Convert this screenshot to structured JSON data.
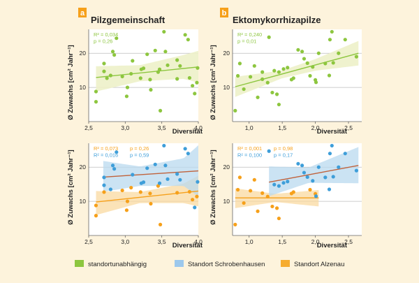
{
  "panels": [
    {
      "letter": "a",
      "title": "Pilzgemeinschaft"
    },
    {
      "letter": "b",
      "title": "Ektomykorrhizapilze"
    }
  ],
  "ylabel": "Ø Zuwachs [cm² Jahr⁻¹]",
  "xlabel": "Diversität",
  "legend": [
    {
      "label": "standortunabhängig",
      "color": "#8dc63f"
    },
    {
      "label": "Standort Schrobenhausen",
      "color": "#9cc8ec"
    },
    {
      "label": "Standort Alzenau",
      "color": "#f6ac2f"
    }
  ],
  "colors": {
    "green": "#8dc63f",
    "blue": "#3e9ed9",
    "orange": "#f6a01a",
    "trend_red": "#c0623b",
    "band_green": "#edf1c9",
    "band_blue": "#b9d9ef",
    "band_orange": "#fad9a0",
    "grid": "#bdbdbd",
    "tag_bg": "#f6a01a"
  },
  "chart_data": [
    {
      "id": "a-top",
      "type": "scatter",
      "xlim": [
        2.5,
        4.0
      ],
      "ylim": [
        0,
        27
      ],
      "xticks": [
        2.5,
        3.0,
        3.5,
        4.0
      ],
      "xtick_labels": [
        "2,5",
        "3,0",
        "3,5",
        "4,0"
      ],
      "yticks": [
        10,
        20
      ],
      "grid": "horizontal",
      "stats": [
        {
          "text": "R² = 0,034",
          "color": "green"
        },
        {
          "text": "p = 0,26",
          "color": "green"
        }
      ],
      "series": [
        {
          "color": "green",
          "points": [
            [
              2.6,
              5.8
            ],
            [
              2.6,
              8.8
            ],
            [
              2.71,
              14.7
            ],
            [
              2.71,
              17.0
            ],
            [
              2.75,
              12.7
            ],
            [
              2.8,
              13.5
            ],
            [
              2.83,
              20.5
            ],
            [
              2.85,
              19.5
            ],
            [
              2.88,
              24.4
            ],
            [
              2.96,
              13.2
            ],
            [
              3.02,
              7.4
            ],
            [
              3.03,
              10.0
            ],
            [
              3.08,
              14.0
            ],
            [
              3.1,
              17.8
            ],
            [
              3.21,
              12.7
            ],
            [
              3.22,
              15.3
            ],
            [
              3.25,
              15.6
            ],
            [
              3.3,
              19.7
            ],
            [
              3.34,
              12.3
            ],
            [
              3.35,
              9.3
            ],
            [
              3.41,
              20.8
            ],
            [
              3.45,
              14.5
            ],
            [
              3.47,
              15.3
            ],
            [
              3.48,
              3.2
            ],
            [
              3.53,
              26.3
            ],
            [
              3.55,
              20.5
            ],
            [
              3.58,
              16.5
            ],
            [
              3.71,
              18.0
            ],
            [
              3.71,
              12.5
            ],
            [
              3.75,
              16.3
            ],
            [
              3.82,
              25.4
            ],
            [
              3.86,
              24.0
            ],
            [
              3.88,
              12.8
            ],
            [
              3.92,
              10.5
            ],
            [
              3.95,
              8.2
            ],
            [
              3.98,
              11.4
            ],
            [
              3.99,
              15.7
            ]
          ],
          "trend": {
            "x": [
              2.6,
              4.0
            ],
            "y": [
              12.9,
              16.0
            ],
            "color": "green"
          },
          "band": {
            "x": [
              2.6,
              3.2,
              3.8,
              4.0
            ],
            "upper": [
              16.2,
              16.5,
              19.5,
              20.7
            ],
            "lower": [
              8.8,
              11.8,
              12.5,
              11.4
            ],
            "fill": "band_green"
          }
        }
      ]
    },
    {
      "id": "b-top",
      "type": "scatter",
      "xlim": [
        0.75,
        2.7
      ],
      "ylim": [
        0,
        27
      ],
      "xticks": [
        1.0,
        1.5,
        2.0,
        2.5
      ],
      "xtick_labels": [
        "1,0",
        "1,5",
        "2,0",
        "2,5"
      ],
      "yticks": [
        10,
        20
      ],
      "grid": "horizontal",
      "stats": [
        {
          "text": "R² = 0,240",
          "color": "green"
        },
        {
          "text": "p = 0,01",
          "color": "green"
        }
      ],
      "series": [
        {
          "color": "green",
          "points": [
            [
              0.79,
              3.2
            ],
            [
              0.83,
              13.4
            ],
            [
              0.86,
              17.0
            ],
            [
              0.92,
              9.5
            ],
            [
              1.02,
              13.1
            ],
            [
              1.08,
              16.3
            ],
            [
              1.13,
              7.1
            ],
            [
              1.2,
              12.4
            ],
            [
              1.2,
              14.5
            ],
            [
              1.28,
              11.4
            ],
            [
              1.3,
              24.7
            ],
            [
              1.35,
              8.5
            ],
            [
              1.38,
              14.9
            ],
            [
              1.42,
              8.0
            ],
            [
              1.45,
              5.0
            ],
            [
              1.45,
              14.5
            ],
            [
              1.52,
              15.4
            ],
            [
              1.58,
              15.8
            ],
            [
              1.64,
              12.3
            ],
            [
              1.67,
              12.7
            ],
            [
              1.74,
              21.0
            ],
            [
              1.8,
              20.5
            ],
            [
              1.83,
              18.4
            ],
            [
              1.88,
              17.1
            ],
            [
              1.92,
              13.4
            ],
            [
              1.96,
              16.0
            ],
            [
              2.0,
              12.2
            ],
            [
              2.01,
              11.5
            ],
            [
              2.05,
              20.0
            ],
            [
              2.15,
              17.0
            ],
            [
              2.21,
              13.5
            ],
            [
              2.22,
              24.0
            ],
            [
              2.25,
              26.3
            ],
            [
              2.27,
              17.2
            ],
            [
              2.35,
              20.0
            ],
            [
              2.45,
              24.0
            ],
            [
              2.62,
              19.0
            ]
          ],
          "trend": {
            "x": [
              0.79,
              2.65
            ],
            "y": [
              10.2,
              20.0
            ],
            "color": "green"
          },
          "band": {
            "x": [
              0.79,
              1.5,
              2.0,
              2.65
            ],
            "upper": [
              13.1,
              15.0,
              18.3,
              23.6
            ],
            "lower": [
              7.2,
              12.7,
              14.9,
              16.4
            ],
            "fill": "band_green"
          }
        }
      ]
    },
    {
      "id": "a-bottom",
      "type": "scatter",
      "xlim": [
        2.5,
        4.0
      ],
      "ylim": [
        0,
        27
      ],
      "xticks": [
        2.5,
        3.0,
        3.5,
        4.0
      ],
      "xtick_labels": [
        "2,5",
        "3,0",
        "3,5",
        "4,0"
      ],
      "yticks": [
        10,
        20
      ],
      "grid": "horizontal",
      "stats": [
        {
          "text": "R² = 0,073",
          "color": "orange"
        },
        {
          "text": "p = 0,26",
          "color": "orange"
        },
        {
          "text": "R² = 0,016",
          "color": "blue"
        },
        {
          "text": "p = 0,59",
          "color": "blue"
        }
      ],
      "series": [
        {
          "color": "orange",
          "points": [
            [
              2.6,
              5.8
            ],
            [
              2.6,
              8.8
            ],
            [
              2.71,
              12.7
            ],
            [
              2.96,
              13.2
            ],
            [
              3.02,
              7.4
            ],
            [
              3.03,
              10.0
            ],
            [
              3.08,
              14.0
            ],
            [
              3.21,
              12.7
            ],
            [
              3.34,
              12.3
            ],
            [
              3.35,
              9.3
            ],
            [
              3.45,
              14.5
            ],
            [
              3.48,
              3.2
            ],
            [
              3.71,
              12.5
            ],
            [
              3.88,
              12.8
            ],
            [
              3.92,
              10.5
            ],
            [
              3.98,
              11.4
            ]
          ],
          "trend": {
            "x": [
              2.6,
              4.0
            ],
            "y": [
              9.8,
              13.0
            ],
            "color": "orange"
          },
          "band": {
            "x": [
              2.6,
              3.2,
              3.8,
              4.0
            ],
            "upper": [
              13.0,
              12.7,
              15.2,
              17.5
            ],
            "lower": [
              6.0,
              9.5,
              9.5,
              8.5
            ],
            "fill": "band_orange"
          }
        },
        {
          "color": "blue",
          "points": [
            [
              2.71,
              14.7
            ],
            [
              2.71,
              17.0
            ],
            [
              2.8,
              13.5
            ],
            [
              2.83,
              20.5
            ],
            [
              2.85,
              19.5
            ],
            [
              2.88,
              24.4
            ],
            [
              3.1,
              17.8
            ],
            [
              3.22,
              15.3
            ],
            [
              3.25,
              15.6
            ],
            [
              3.3,
              19.7
            ],
            [
              3.41,
              20.8
            ],
            [
              3.47,
              15.3
            ],
            [
              3.53,
              26.3
            ],
            [
              3.55,
              20.5
            ],
            [
              3.58,
              16.5
            ],
            [
              3.71,
              18.0
            ],
            [
              3.75,
              16.3
            ],
            [
              3.82,
              25.4
            ],
            [
              3.86,
              24.0
            ],
            [
              3.95,
              8.2
            ],
            [
              3.99,
              15.7
            ]
          ],
          "trend": {
            "x": [
              2.7,
              4.0
            ],
            "y": [
              17.1,
              18.9
            ],
            "color": "trend_red"
          },
          "band": {
            "x": [
              2.7,
              3.2,
              3.8,
              4.0
            ],
            "upper": [
              21.8,
              20.2,
              22.6,
              26.4
            ],
            "lower": [
              12.8,
              14.5,
              14.5,
              11.4
            ],
            "fill": "band_blue"
          }
        }
      ]
    },
    {
      "id": "b-bottom",
      "type": "scatter",
      "xlim": [
        0.75,
        2.7
      ],
      "ylim": [
        0,
        27
      ],
      "xticks": [
        1.0,
        1.5,
        2.0,
        2.5
      ],
      "xtick_labels": [
        "1,0",
        "1,5",
        "2,0",
        "2,5"
      ],
      "yticks": [
        10,
        20
      ],
      "grid": "horizontal",
      "stats": [
        {
          "text": "R² = 0,001",
          "color": "orange"
        },
        {
          "text": "p = 0,98",
          "color": "orange"
        },
        {
          "text": "R² = 0,100",
          "color": "blue"
        },
        {
          "text": "p = 0,17",
          "color": "blue"
        }
      ],
      "series": [
        {
          "color": "orange",
          "points": [
            [
              0.79,
              3.2
            ],
            [
              0.83,
              13.4
            ],
            [
              0.86,
              17.0
            ],
            [
              0.92,
              9.5
            ],
            [
              1.02,
              13.1
            ],
            [
              1.08,
              16.3
            ],
            [
              1.13,
              7.1
            ],
            [
              1.2,
              12.4
            ],
            [
              1.28,
              11.4
            ],
            [
              1.35,
              8.5
            ],
            [
              1.42,
              8.0
            ],
            [
              1.45,
              5.0
            ],
            [
              1.64,
              12.3
            ],
            [
              1.67,
              12.7
            ],
            [
              1.92,
              13.4
            ],
            [
              2.0,
              12.2
            ]
          ],
          "trend": {
            "x": [
              0.79,
              2.05
            ],
            "y": [
              11.0,
              11.0
            ],
            "color": "orange"
          },
          "band": {
            "x": [
              0.79,
              1.4,
              2.05
            ],
            "upper": [
              13.8,
              12.2,
              13.3
            ],
            "lower": [
              8.0,
              9.8,
              8.5
            ],
            "fill": "band_orange"
          }
        },
        {
          "color": "blue",
          "points": [
            [
              1.3,
              24.7
            ],
            [
              1.38,
              14.9
            ],
            [
              1.45,
              14.5
            ],
            [
              1.52,
              15.4
            ],
            [
              1.58,
              15.8
            ],
            [
              1.74,
              21.0
            ],
            [
              1.8,
              20.5
            ],
            [
              1.83,
              18.4
            ],
            [
              1.88,
              17.1
            ],
            [
              1.96,
              16.0
            ],
            [
              2.01,
              11.5
            ],
            [
              2.05,
              20.0
            ],
            [
              2.15,
              17.0
            ],
            [
              2.21,
              13.5
            ],
            [
              2.22,
              24.0
            ],
            [
              2.25,
              26.3
            ],
            [
              2.27,
              17.2
            ],
            [
              2.35,
              20.0
            ],
            [
              2.45,
              24.0
            ],
            [
              2.62,
              19.0
            ]
          ],
          "trend": {
            "x": [
              1.3,
              2.65
            ],
            "y": [
              15.6,
              20.5
            ],
            "color": "trend_red"
          },
          "band": {
            "x": [
              1.3,
              1.9,
              2.65
            ],
            "upper": [
              20.2,
              19.9,
              25.9
            ],
            "lower": [
              11.5,
              15.4,
              15.3
            ],
            "fill": "band_blue"
          }
        }
      ]
    }
  ]
}
